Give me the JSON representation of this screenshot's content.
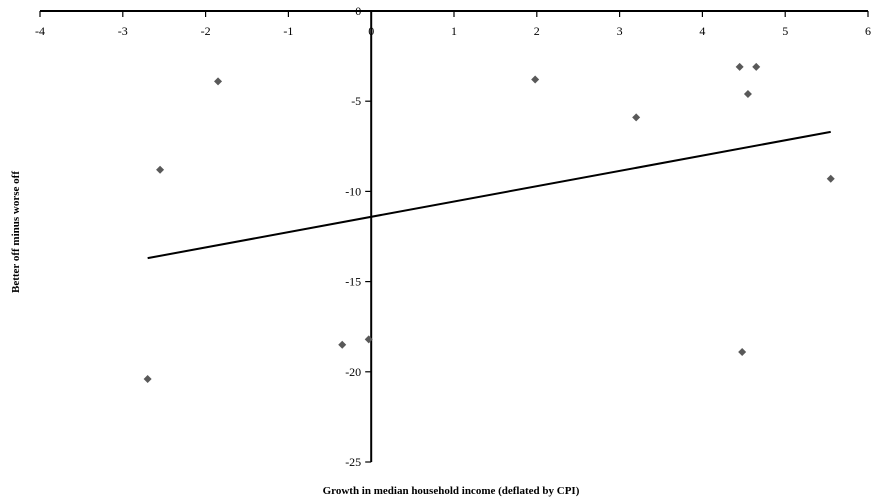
{
  "chart_data": {
    "type": "scatter",
    "title": "",
    "xlabel": "Growth in median household income (deflated by CPI)",
    "ylabel": "Better off minus worse off",
    "xlim": [
      -4,
      6
    ],
    "ylim": [
      -25,
      0
    ],
    "x_ticks": [
      -4,
      -3,
      -2,
      -1,
      0,
      1,
      2,
      3,
      4,
      5,
      6
    ],
    "y_ticks": [
      0,
      -5,
      -10,
      -15,
      -20,
      -25
    ],
    "x_axis_position": "top",
    "grid": false,
    "legend": "none",
    "marker": "diamond",
    "marker_color": "#595959",
    "line_color": "#000000",
    "points": [
      {
        "x": -2.7,
        "y": -20.4
      },
      {
        "x": -2.55,
        "y": -8.8
      },
      {
        "x": -1.85,
        "y": -3.9
      },
      {
        "x": -0.35,
        "y": -18.5
      },
      {
        "x": -0.03,
        "y": -18.2
      },
      {
        "x": 1.98,
        "y": -3.8
      },
      {
        "x": 3.2,
        "y": -5.9
      },
      {
        "x": 4.45,
        "y": -3.1
      },
      {
        "x": 4.48,
        "y": -18.9
      },
      {
        "x": 4.55,
        "y": -4.6
      },
      {
        "x": 4.65,
        "y": -3.1
      },
      {
        "x": 5.55,
        "y": -9.3
      }
    ],
    "trendline": {
      "x": [
        -2.7,
        5.55
      ],
      "y": [
        -13.7,
        -6.7
      ]
    }
  }
}
